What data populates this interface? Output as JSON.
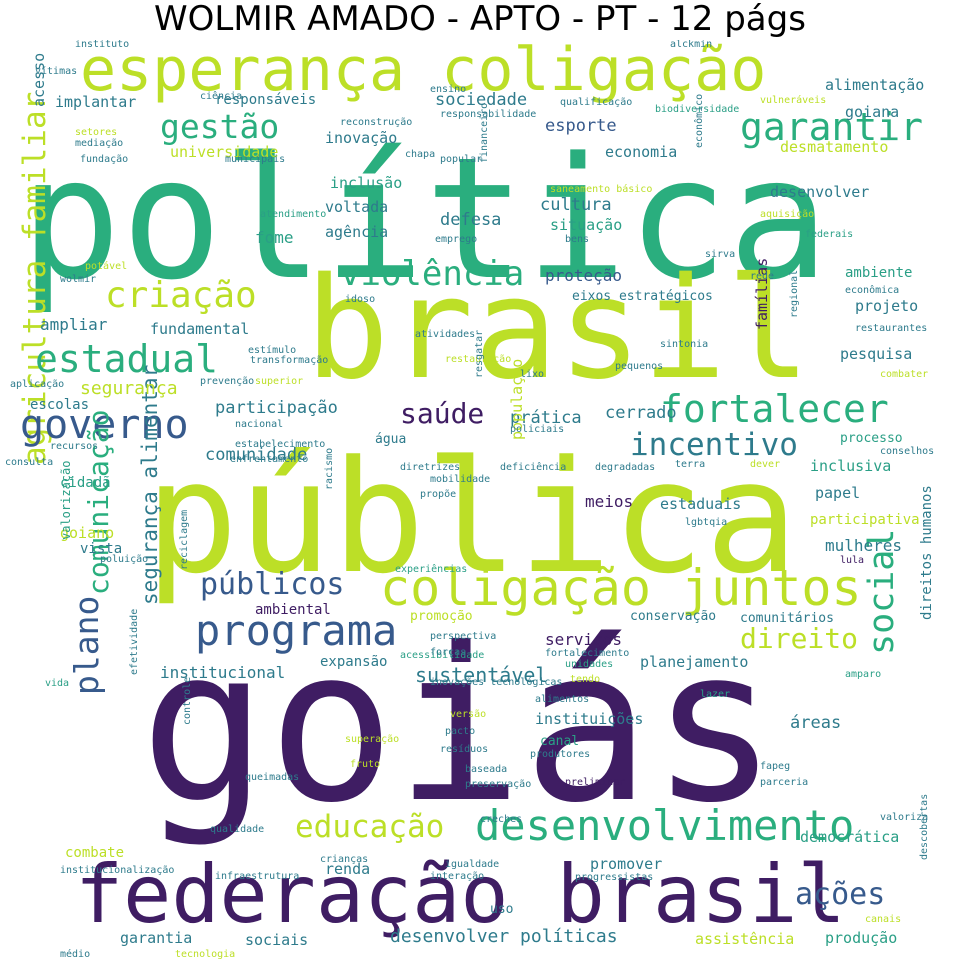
{
  "title": "WOLMIR AMADO - APTO - PT - 12 págs",
  "palette": {
    "green": "#2aae7e",
    "lime": "#bcdf27",
    "purple": "#46256f",
    "teal": "#2e7b8c",
    "blue": "#375a8c",
    "darkpurple": "#3f1d63",
    "yellow": "#e3d63b",
    "seagreen": "#2a9f86"
  },
  "words": [
    {
      "text": "política",
      "color": "green"
    },
    {
      "text": "goiás",
      "color": "darkpurple"
    },
    {
      "text": "pública",
      "color": "lime"
    },
    {
      "text": "brasil",
      "color": "lime"
    },
    {
      "text": "esperança coligação",
      "color": "lime"
    },
    {
      "text": "federação brasil",
      "color": "darkpurple"
    },
    {
      "text": "coligação juntos",
      "color": "lime"
    },
    {
      "text": "desenvolvimento",
      "color": "green"
    },
    {
      "text": "programa",
      "color": "blue"
    },
    {
      "text": "agricultura familiar",
      "color": "lime"
    },
    {
      "text": "fortalecer",
      "color": "green"
    },
    {
      "text": "governo",
      "color": "blue"
    },
    {
      "text": "violência",
      "color": "green"
    },
    {
      "text": "criação",
      "color": "lime"
    },
    {
      "text": "garantir",
      "color": "green"
    },
    {
      "text": "estadual",
      "color": "green"
    },
    {
      "text": "gestão",
      "color": "green"
    },
    {
      "text": "incentivo",
      "color": "teal"
    },
    {
      "text": "educação",
      "color": "lime"
    },
    {
      "text": "públicos",
      "color": "blue"
    },
    {
      "text": "direito",
      "color": "lime"
    },
    {
      "text": "saúde",
      "color": "darkpurple"
    },
    {
      "text": "social",
      "color": "green"
    },
    {
      "text": "plano",
      "color": "blue"
    },
    {
      "text": "comunicação",
      "color": "green"
    },
    {
      "text": "ações",
      "color": "blue"
    },
    {
      "text": "segurança alimentar",
      "color": "teal"
    },
    {
      "text": "desenvolver políticas",
      "color": "teal"
    },
    {
      "text": "cultura",
      "color": "teal"
    },
    {
      "text": "defesa",
      "color": "teal"
    },
    {
      "text": "sociedade",
      "color": "teal"
    },
    {
      "text": "esporte",
      "color": "blue"
    },
    {
      "text": "participação",
      "color": "teal"
    },
    {
      "text": "comunidade",
      "color": "teal"
    },
    {
      "text": "cerrado",
      "color": "teal"
    },
    {
      "text": "prática",
      "color": "teal"
    },
    {
      "text": "proteção",
      "color": "blue"
    },
    {
      "text": "voltada",
      "color": "teal"
    },
    {
      "text": "agência",
      "color": "teal"
    },
    {
      "text": "inclusão",
      "color": "seagreen"
    },
    {
      "text": "inovação",
      "color": "teal"
    },
    {
      "text": "situação",
      "color": "seagreen"
    },
    {
      "text": "segurança",
      "color": "lime"
    },
    {
      "text": "ampliar",
      "color": "teal"
    },
    {
      "text": "fundamental",
      "color": "teal"
    },
    {
      "text": "fome",
      "color": "seagreen"
    },
    {
      "text": "universidade",
      "color": "lime"
    },
    {
      "text": "responsáveis",
      "color": "teal"
    },
    {
      "text": "implantar",
      "color": "teal"
    },
    {
      "text": "acesso",
      "color": "teal"
    },
    {
      "text": "goiana",
      "color": "teal"
    },
    {
      "text": "alimentação",
      "color": "teal"
    },
    {
      "text": "desmatamento",
      "color": "lime"
    },
    {
      "text": "economia",
      "color": "teal"
    },
    {
      "text": "desenvolver",
      "color": "teal"
    },
    {
      "text": "ambiente",
      "color": "seagreen"
    },
    {
      "text": "projeto",
      "color": "teal"
    },
    {
      "text": "pesquisa",
      "color": "teal"
    },
    {
      "text": "famílias",
      "color": "darkpurple"
    },
    {
      "text": "inclusiva",
      "color": "seagreen"
    },
    {
      "text": "papel",
      "color": "teal"
    },
    {
      "text": "participativa",
      "color": "lime"
    },
    {
      "text": "mulheres",
      "color": "teal"
    },
    {
      "text": "estaduais",
      "color": "teal"
    },
    {
      "text": "meios",
      "color": "darkpurple"
    },
    {
      "text": "população",
      "color": "lime"
    },
    {
      "text": "água",
      "color": "teal"
    },
    {
      "text": "goiano",
      "color": "lime"
    },
    {
      "text": "cidadã",
      "color": "seagreen"
    },
    {
      "text": "escolas",
      "color": "teal"
    },
    {
      "text": "vista",
      "color": "teal"
    },
    {
      "text": "valorização",
      "color": "seagreen"
    },
    {
      "text": "institucional",
      "color": "teal"
    },
    {
      "text": "ambiental",
      "color": "darkpurple"
    },
    {
      "text": "expansão",
      "color": "teal"
    },
    {
      "text": "sustentável",
      "color": "teal"
    },
    {
      "text": "serviços",
      "color": "darkpurple"
    },
    {
      "text": "conservação",
      "color": "teal"
    },
    {
      "text": "comunitários",
      "color": "teal"
    },
    {
      "text": "planejamento",
      "color": "teal"
    },
    {
      "text": "instituições",
      "color": "teal"
    },
    {
      "text": "canal",
      "color": "seagreen"
    },
    {
      "text": "áreas",
      "color": "teal"
    },
    {
      "text": "direitos humanos",
      "color": "teal"
    },
    {
      "text": "combate",
      "color": "lime"
    },
    {
      "text": "renda",
      "color": "teal"
    },
    {
      "text": "promover",
      "color": "teal"
    },
    {
      "text": "democrática",
      "color": "seagreen"
    },
    {
      "text": "garantia",
      "color": "teal"
    },
    {
      "text": "sociais",
      "color": "teal"
    },
    {
      "text": "uso",
      "color": "teal"
    },
    {
      "text": "assistência",
      "color": "lime"
    },
    {
      "text": "produção",
      "color": "seagreen"
    },
    {
      "text": "promoção",
      "color": "lime"
    },
    {
      "text": "eixos estratégicos",
      "color": "teal"
    },
    {
      "text": "processo",
      "color": "seagreen"
    },
    {
      "text": "instituto",
      "color": "teal"
    },
    {
      "text": "alckmin",
      "color": "teal"
    },
    {
      "text": "vítimas",
      "color": "teal"
    },
    {
      "text": "ciência",
      "color": "teal"
    },
    {
      "text": "ensino",
      "color": "teal"
    },
    {
      "text": "qualificação",
      "color": "teal"
    },
    {
      "text": "biodiversidade",
      "color": "seagreen"
    },
    {
      "text": "vulneráveis",
      "color": "lime"
    },
    {
      "text": "responsabilidade",
      "color": "teal"
    },
    {
      "text": "reconstrução",
      "color": "teal"
    },
    {
      "text": "setores",
      "color": "lime"
    },
    {
      "text": "mediação",
      "color": "teal"
    },
    {
      "text": "fundação",
      "color": "teal"
    },
    {
      "text": "municipais",
      "color": "teal"
    },
    {
      "text": "chapa",
      "color": "teal"
    },
    {
      "text": "popular",
      "color": "teal"
    },
    {
      "text": "econômico",
      "color": "teal"
    },
    {
      "text": "financeiro",
      "color": "teal"
    },
    {
      "text": "saneamento básico",
      "color": "lime"
    },
    {
      "text": "aquisição",
      "color": "lime"
    },
    {
      "text": "atendimento",
      "color": "seagreen"
    },
    {
      "text": "emprego",
      "color": "teal"
    },
    {
      "text": "bens",
      "color": "teal"
    },
    {
      "text": "federais",
      "color": "seagreen"
    },
    {
      "text": "potável",
      "color": "lime"
    },
    {
      "text": "sirva",
      "color": "teal"
    },
    {
      "text": "wolmir",
      "color": "teal"
    },
    {
      "text": "rede",
      "color": "teal"
    },
    {
      "text": "econômica",
      "color": "teal"
    },
    {
      "text": "idoso",
      "color": "teal"
    },
    {
      "text": "regional",
      "color": "teal"
    },
    {
      "text": "restaurantes",
      "color": "teal"
    },
    {
      "text": "atividades",
      "color": "teal"
    },
    {
      "text": "transformação",
      "color": "teal"
    },
    {
      "text": "restauração",
      "color": "lime"
    },
    {
      "text": "sintonia",
      "color": "teal"
    },
    {
      "text": "aplicação",
      "color": "teal"
    },
    {
      "text": "prevenção",
      "color": "teal"
    },
    {
      "text": "superior",
      "color": "lime"
    },
    {
      "text": "resgatar",
      "color": "teal"
    },
    {
      "text": "pequenos",
      "color": "teal"
    },
    {
      "text": "lixo",
      "color": "teal"
    },
    {
      "text": "combater",
      "color": "lime"
    },
    {
      "text": "nacional",
      "color": "teal"
    },
    {
      "text": "policiais",
      "color": "teal"
    },
    {
      "text": "recursos",
      "color": "teal"
    },
    {
      "text": "estabelecimento",
      "color": "teal"
    },
    {
      "text": "enfrentamento",
      "color": "teal"
    },
    {
      "text": "terra",
      "color": "teal"
    },
    {
      "text": "dever",
      "color": "lime"
    },
    {
      "text": "conselhos",
      "color": "teal"
    },
    {
      "text": "consulta",
      "color": "teal"
    },
    {
      "text": "diretrizes",
      "color": "teal"
    },
    {
      "text": "deficiência",
      "color": "teal"
    },
    {
      "text": "degradadas",
      "color": "teal"
    },
    {
      "text": "mobilidade",
      "color": "teal"
    },
    {
      "text": "propõe",
      "color": "teal"
    },
    {
      "text": "lgbtqia",
      "color": "teal"
    },
    {
      "text": "racismo",
      "color": "teal"
    },
    {
      "text": "poluição",
      "color": "teal"
    },
    {
      "text": "experiências",
      "color": "seagreen"
    },
    {
      "text": "lula",
      "color": "darkpurple"
    },
    {
      "text": "reciclagem",
      "color": "teal"
    },
    {
      "text": "perspectiva",
      "color": "teal"
    },
    {
      "text": "acessibilidade",
      "color": "seagreen"
    },
    {
      "text": "forças",
      "color": "teal"
    },
    {
      "text": "vida",
      "color": "seagreen"
    },
    {
      "text": "efetividade",
      "color": "teal"
    },
    {
      "text": "unidades",
      "color": "seagreen"
    },
    {
      "text": "inovações tecnológicas",
      "color": "teal"
    },
    {
      "text": "tendo",
      "color": "lime"
    },
    {
      "text": "amparo",
      "color": "seagreen"
    },
    {
      "text": "alimentos",
      "color": "teal"
    },
    {
      "text": "lazer",
      "color": "seagreen"
    },
    {
      "text": "versão",
      "color": "lime"
    },
    {
      "text": "pacto",
      "color": "teal"
    },
    {
      "text": "superação",
      "color": "lime"
    },
    {
      "text": "resíduos",
      "color": "teal"
    },
    {
      "text": "controle",
      "color": "teal"
    },
    {
      "text": "produtores",
      "color": "teal"
    },
    {
      "text": "fruto",
      "color": "lime"
    },
    {
      "text": "baseada",
      "color": "teal"
    },
    {
      "text": "fapeg",
      "color": "teal"
    },
    {
      "text": "parceria",
      "color": "teal"
    },
    {
      "text": "queimadas",
      "color": "teal"
    },
    {
      "text": "preservação",
      "color": "teal"
    },
    {
      "text": "preliminar",
      "color": "darkpurple"
    },
    {
      "text": "qualidade",
      "color": "teal"
    },
    {
      "text": "creches",
      "color": "teal"
    },
    {
      "text": "valoriza",
      "color": "teal"
    },
    {
      "text": "institucionalização",
      "color": "teal"
    },
    {
      "text": "crianças",
      "color": "teal"
    },
    {
      "text": "igualdade",
      "color": "teal"
    },
    {
      "text": "infraestrutura",
      "color": "teal"
    },
    {
      "text": "interação",
      "color": "teal"
    },
    {
      "text": "progressistas",
      "color": "teal"
    },
    {
      "text": "descobertas",
      "color": "teal"
    },
    {
      "text": "canais",
      "color": "lime"
    },
    {
      "text": "médio",
      "color": "teal"
    },
    {
      "text": "tecnologia",
      "color": "lime"
    },
    {
      "text": "estímulo",
      "color": "teal"
    },
    {
      "text": "fortalecimento",
      "color": "teal"
    },
    {
      "text": "i",
      "color": "teal"
    },
    {
      "text": "d",
      "color": "seagreen"
    }
  ]
}
